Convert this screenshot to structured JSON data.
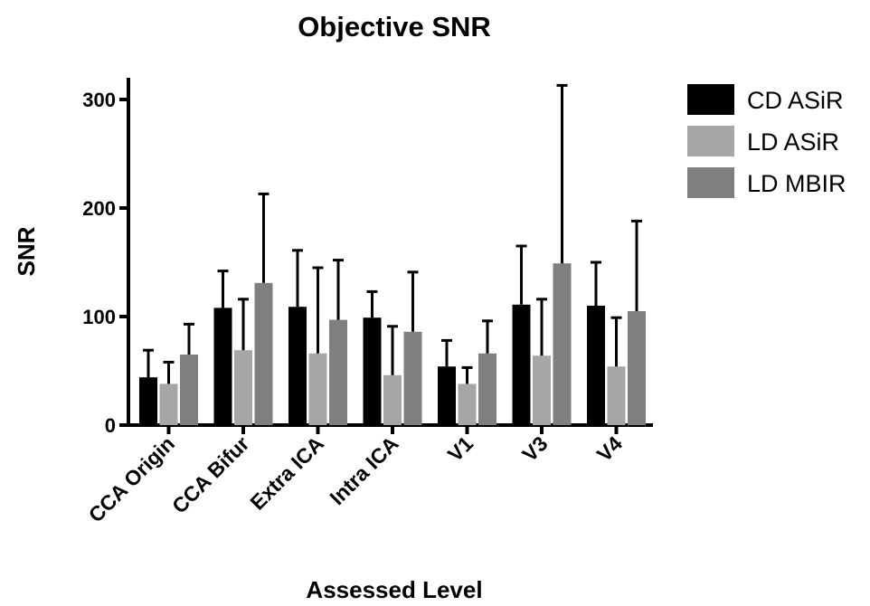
{
  "chart_data": {
    "type": "bar",
    "title": "Objective SNR",
    "xlabel": "Assessed Level",
    "ylabel": "SNR",
    "categories": [
      "CCA Origin",
      "CCA Bifur",
      "Extra ICA",
      "Intra ICA",
      "V1",
      "V3",
      "V4"
    ],
    "series": [
      {
        "name": "CD ASiR",
        "color": "#000000",
        "values": [
          44,
          108,
          109,
          99,
          54,
          111,
          110
        ],
        "error_upper": [
          69,
          142,
          161,
          123,
          78,
          165,
          150
        ]
      },
      {
        "name": "LD ASiR",
        "color": "#a6a6a6",
        "values": [
          38,
          69,
          66,
          46,
          38,
          64,
          54
        ],
        "error_upper": [
          58,
          116,
          145,
          91,
          53,
          116,
          99
        ]
      },
      {
        "name": "LD MBIR",
        "color": "#7f7f7f",
        "values": [
          65,
          131,
          97,
          86,
          66,
          149,
          105
        ],
        "error_upper": [
          93,
          213,
          152,
          141,
          96,
          313,
          188
        ]
      }
    ],
    "yticks": [
      0,
      100,
      200,
      300
    ],
    "ylim": [
      0,
      320
    ],
    "grid": false,
    "legend": "right",
    "error_bars": "upper"
  }
}
